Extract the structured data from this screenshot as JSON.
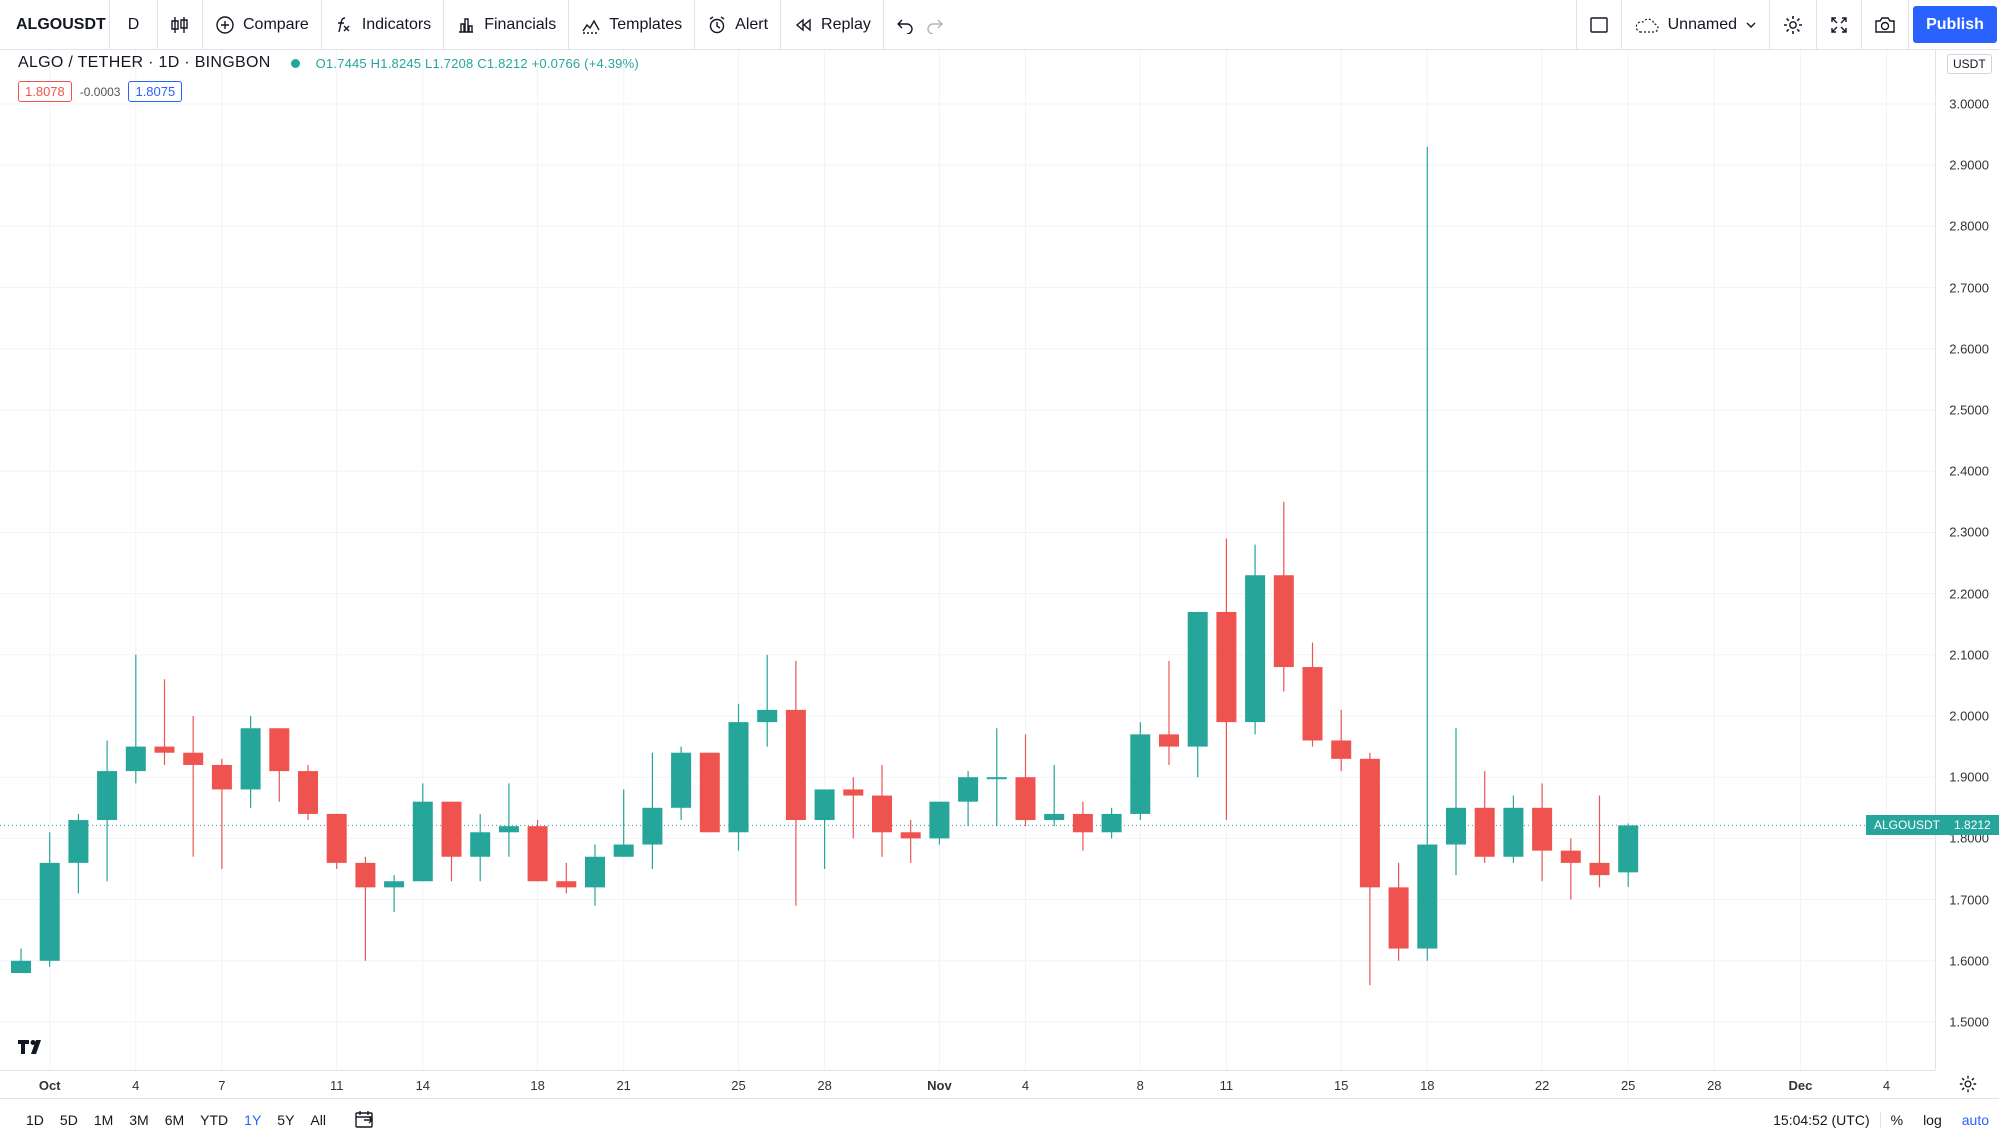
{
  "toolbar": {
    "symbol": "ALGOUSDT",
    "interval": "D",
    "compare": "Compare",
    "indicators": "Indicators",
    "financials": "Financials",
    "templates": "Templates",
    "alert": "Alert",
    "replay": "Replay",
    "layout_name": "Unnamed",
    "publish": "Publish"
  },
  "legend": {
    "title": "ALGO / TETHER · 1D · BINGBON",
    "ohlc": "O1.7445 H1.8245 L1.7208 C1.8212 +0.0766 (+4.39%)",
    "sell_price": "1.8078",
    "spread": "-0.0003",
    "buy_price": "1.8075"
  },
  "price_axis": {
    "currency": "USDT",
    "last_symbol": "ALGOUSDT",
    "last_price": "1.8212"
  },
  "bottom_bar": {
    "ranges": [
      "1D",
      "5D",
      "1M",
      "3M",
      "6M",
      "YTD",
      "1Y",
      "5Y",
      "All"
    ],
    "active_range": "1Y",
    "time": "15:04:52 (UTC)",
    "percent": "%",
    "log": "log",
    "auto": "auto"
  },
  "colors": {
    "up": "#26a69a",
    "down": "#ef5350",
    "accent": "#2962ff"
  },
  "chart_data": {
    "type": "candlestick",
    "title": "ALGO / TETHER · 1D · BINGBON",
    "ylabel": "USDT",
    "ylim": [
      1.45,
      3.05
    ],
    "y_ticks": [
      "1.5000",
      "1.6000",
      "1.7000",
      "1.8000",
      "1.9000",
      "2.0000",
      "2.1000",
      "2.2000",
      "2.3000",
      "2.4000",
      "2.5000",
      "2.6000",
      "2.7000",
      "2.8000",
      "2.9000",
      "3.0000"
    ],
    "x_ticks": [
      {
        "label": "Oct",
        "day": 1
      },
      {
        "label": "4",
        "day": 4
      },
      {
        "label": "7",
        "day": 7
      },
      {
        "label": "11",
        "day": 11
      },
      {
        "label": "14",
        "day": 14
      },
      {
        "label": "18",
        "day": 18
      },
      {
        "label": "21",
        "day": 21
      },
      {
        "label": "25",
        "day": 25
      },
      {
        "label": "28",
        "day": 28
      },
      {
        "label": "Nov",
        "day": 32
      },
      {
        "label": "4",
        "day": 35
      },
      {
        "label": "8",
        "day": 39
      },
      {
        "label": "11",
        "day": 42
      },
      {
        "label": "15",
        "day": 46
      },
      {
        "label": "18",
        "day": 49
      },
      {
        "label": "22",
        "day": 53
      },
      {
        "label": "25",
        "day": 56
      },
      {
        "label": "28",
        "day": 59
      },
      {
        "label": "Dec",
        "day": 62
      },
      {
        "label": "4",
        "day": 65
      }
    ],
    "candles": [
      {
        "day": 0,
        "o": 1.58,
        "h": 1.62,
        "l": 1.58,
        "c": 1.6
      },
      {
        "day": 1,
        "o": 1.6,
        "h": 1.81,
        "l": 1.59,
        "c": 1.76
      },
      {
        "day": 2,
        "o": 1.76,
        "h": 1.84,
        "l": 1.71,
        "c": 1.83
      },
      {
        "day": 3,
        "o": 1.83,
        "h": 1.96,
        "l": 1.73,
        "c": 1.91
      },
      {
        "day": 4,
        "o": 1.91,
        "h": 2.1,
        "l": 1.89,
        "c": 1.95
      },
      {
        "day": 5,
        "o": 1.95,
        "h": 2.06,
        "l": 1.92,
        "c": 1.94
      },
      {
        "day": 6,
        "o": 1.94,
        "h": 2.0,
        "l": 1.77,
        "c": 1.92
      },
      {
        "day": 7,
        "o": 1.92,
        "h": 1.93,
        "l": 1.75,
        "c": 1.88
      },
      {
        "day": 8,
        "o": 1.88,
        "h": 2.0,
        "l": 1.85,
        "c": 1.98
      },
      {
        "day": 9,
        "o": 1.98,
        "h": 1.98,
        "l": 1.86,
        "c": 1.91
      },
      {
        "day": 10,
        "o": 1.91,
        "h": 1.92,
        "l": 1.83,
        "c": 1.84
      },
      {
        "day": 11,
        "o": 1.84,
        "h": 1.84,
        "l": 1.75,
        "c": 1.76
      },
      {
        "day": 12,
        "o": 1.76,
        "h": 1.77,
        "l": 1.6,
        "c": 1.72
      },
      {
        "day": 13,
        "o": 1.72,
        "h": 1.74,
        "l": 1.68,
        "c": 1.73
      },
      {
        "day": 14,
        "o": 1.73,
        "h": 1.89,
        "l": 1.73,
        "c": 1.86
      },
      {
        "day": 15,
        "o": 1.86,
        "h": 1.86,
        "l": 1.73,
        "c": 1.77
      },
      {
        "day": 16,
        "o": 1.77,
        "h": 1.84,
        "l": 1.73,
        "c": 1.81
      },
      {
        "day": 17,
        "o": 1.81,
        "h": 1.89,
        "l": 1.77,
        "c": 1.82
      },
      {
        "day": 18,
        "o": 1.82,
        "h": 1.83,
        "l": 1.73,
        "c": 1.73
      },
      {
        "day": 19,
        "o": 1.73,
        "h": 1.76,
        "l": 1.71,
        "c": 1.72
      },
      {
        "day": 20,
        "o": 1.72,
        "h": 1.79,
        "l": 1.69,
        "c": 1.77
      },
      {
        "day": 21,
        "o": 1.77,
        "h": 1.88,
        "l": 1.77,
        "c": 1.79
      },
      {
        "day": 22,
        "o": 1.79,
        "h": 1.94,
        "l": 1.75,
        "c": 1.85
      },
      {
        "day": 23,
        "o": 1.85,
        "h": 1.95,
        "l": 1.83,
        "c": 1.94
      },
      {
        "day": 24,
        "o": 1.94,
        "h": 1.94,
        "l": 1.81,
        "c": 1.81
      },
      {
        "day": 25,
        "o": 1.81,
        "h": 2.02,
        "l": 1.78,
        "c": 1.99
      },
      {
        "day": 26,
        "o": 1.99,
        "h": 2.1,
        "l": 1.95,
        "c": 2.01
      },
      {
        "day": 27,
        "o": 2.01,
        "h": 2.09,
        "l": 1.69,
        "c": 1.83
      },
      {
        "day": 28,
        "o": 1.83,
        "h": 1.88,
        "l": 1.75,
        "c": 1.88
      },
      {
        "day": 29,
        "o": 1.88,
        "h": 1.9,
        "l": 1.8,
        "c": 1.87
      },
      {
        "day": 30,
        "o": 1.87,
        "h": 1.92,
        "l": 1.77,
        "c": 1.81
      },
      {
        "day": 31,
        "o": 1.81,
        "h": 1.83,
        "l": 1.76,
        "c": 1.8
      },
      {
        "day": 32,
        "o": 1.8,
        "h": 1.86,
        "l": 1.79,
        "c": 1.86
      },
      {
        "day": 33,
        "o": 1.86,
        "h": 1.91,
        "l": 1.82,
        "c": 1.9
      },
      {
        "day": 34,
        "o": 1.9,
        "h": 1.98,
        "l": 1.82,
        "c": 1.9
      },
      {
        "day": 35,
        "o": 1.9,
        "h": 1.97,
        "l": 1.82,
        "c": 1.83
      },
      {
        "day": 36,
        "o": 1.83,
        "h": 1.92,
        "l": 1.82,
        "c": 1.84
      },
      {
        "day": 37,
        "o": 1.84,
        "h": 1.86,
        "l": 1.78,
        "c": 1.81
      },
      {
        "day": 38,
        "o": 1.81,
        "h": 1.85,
        "l": 1.8,
        "c": 1.84
      },
      {
        "day": 39,
        "o": 1.84,
        "h": 1.99,
        "l": 1.83,
        "c": 1.97
      },
      {
        "day": 40,
        "o": 1.97,
        "h": 2.09,
        "l": 1.92,
        "c": 1.95
      },
      {
        "day": 41,
        "o": 1.95,
        "h": 2.17,
        "l": 1.9,
        "c": 2.17
      },
      {
        "day": 42,
        "o": 2.17,
        "h": 2.29,
        "l": 1.83,
        "c": 1.99
      },
      {
        "day": 43,
        "o": 1.99,
        "h": 2.28,
        "l": 1.97,
        "c": 2.23
      },
      {
        "day": 44,
        "o": 2.23,
        "h": 2.35,
        "l": 2.04,
        "c": 2.08
      },
      {
        "day": 45,
        "o": 2.08,
        "h": 2.12,
        "l": 1.95,
        "c": 1.96
      },
      {
        "day": 46,
        "o": 1.96,
        "h": 2.01,
        "l": 1.91,
        "c": 1.93
      },
      {
        "day": 47,
        "o": 1.93,
        "h": 1.94,
        "l": 1.56,
        "c": 1.72
      },
      {
        "day": 48,
        "o": 1.72,
        "h": 1.76,
        "l": 1.6,
        "c": 1.62
      },
      {
        "day": 49,
        "o": 1.62,
        "h": 2.93,
        "l": 1.6,
        "c": 1.79
      },
      {
        "day": 50,
        "o": 1.79,
        "h": 1.98,
        "l": 1.74,
        "c": 1.85
      },
      {
        "day": 51,
        "o": 1.85,
        "h": 1.91,
        "l": 1.76,
        "c": 1.77
      },
      {
        "day": 52,
        "o": 1.77,
        "h": 1.87,
        "l": 1.76,
        "c": 1.85
      },
      {
        "day": 53,
        "o": 1.85,
        "h": 1.89,
        "l": 1.73,
        "c": 1.78
      },
      {
        "day": 54,
        "o": 1.78,
        "h": 1.8,
        "l": 1.7,
        "c": 1.76
      },
      {
        "day": 55,
        "o": 1.76,
        "h": 1.87,
        "l": 1.72,
        "c": 1.74
      },
      {
        "day": 56,
        "o": 1.7445,
        "h": 1.8245,
        "l": 1.7208,
        "c": 1.8212
      }
    ],
    "last_price": 1.8212
  }
}
